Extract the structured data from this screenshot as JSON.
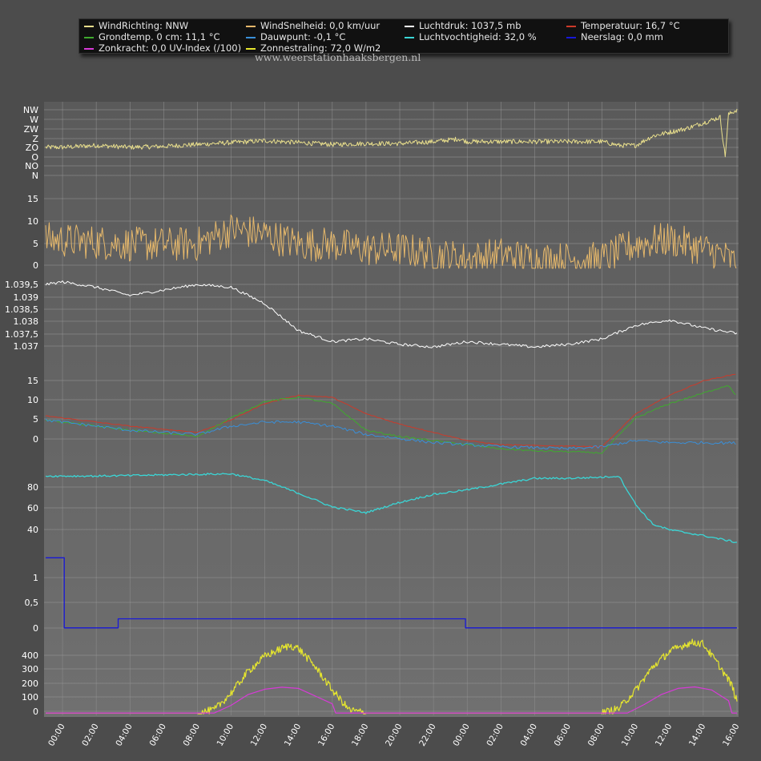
{
  "legend": [
    {
      "label": "WindRichting: NNW",
      "color": "#e8de8c"
    },
    {
      "label": "WindSnelheid: 0,0 km/uur",
      "color": "#e6b86b"
    },
    {
      "label": "Luchtdruk: 1037,5 mb",
      "color": "#ffffff"
    },
    {
      "label": "Temperatuur: 16,7 °C",
      "color": "#cc3a2a"
    },
    {
      "label": "Grondtemp. 0 cm: 11,1 °C",
      "color": "#3faa2e"
    },
    {
      "label": "Dauwpunt: -0,1 °C",
      "color": "#3a8fd8"
    },
    {
      "label": "Luchtvochtigheid: 32,0 %",
      "color": "#3ad6d6"
    },
    {
      "label": "Neerslag: 0,0 mm",
      "color": "#1818d8"
    },
    {
      "label": "Zonkracht: 0,0 UV-Index (/100)",
      "color": "#d83ad8"
    },
    {
      "label": "Zonnestraling: 72,0 W/m2",
      "color": "#e6e62e"
    }
  ],
  "site": "www.weerstationhaaksbergen.nl",
  "chart_data": {
    "type": "line",
    "x_unit": "hours since 00:00 day 1",
    "x_range": [
      -1,
      40
    ],
    "x_ticks": [
      "00:00",
      "02:00",
      "04:00",
      "06:00",
      "08:00",
      "10:00",
      "12:00",
      "14:00",
      "16:00",
      "18:00",
      "20:00",
      "22:00",
      "00:00",
      "02:00",
      "04:00",
      "06:00",
      "08:00",
      "10:00",
      "12:00",
      "14:00",
      "16:00"
    ],
    "grid": true,
    "panels": [
      {
        "id": "wind-direction",
        "ticks": [
          "NW",
          "W",
          "ZW",
          "Z",
          "ZO",
          "O",
          "NO",
          "N"
        ],
        "series": [
          {
            "name": "WindRichting",
            "color": "#e8de8c",
            "points": [
              [
                -1,
                3.0
              ],
              [
                0,
                3.0
              ],
              [
                2,
                3.2
              ],
              [
                4,
                3.0
              ],
              [
                6,
                3.1
              ],
              [
                8,
                3.3
              ],
              [
                10,
                3.5
              ],
              [
                12,
                3.7
              ],
              [
                14,
                3.5
              ],
              [
                16,
                3.3
              ],
              [
                18,
                3.4
              ],
              [
                20,
                3.4
              ],
              [
                22,
                3.6
              ],
              [
                23.5,
                3.9
              ],
              [
                24,
                3.6
              ],
              [
                28,
                3.6
              ],
              [
                32,
                3.6
              ],
              [
                33,
                3.2
              ],
              [
                34,
                3.2
              ],
              [
                35,
                4.2
              ],
              [
                36,
                4.6
              ],
              [
                37,
                5.0
              ],
              [
                38,
                5.6
              ],
              [
                39,
                6.2
              ],
              [
                39.3,
                2.0
              ],
              [
                39.5,
                6.5
              ],
              [
                40,
                7.0
              ]
            ],
            "noise": 0.25
          }
        ]
      },
      {
        "id": "wind-speed",
        "ticks": [
          "15",
          "10",
          "5",
          "0"
        ],
        "range": [
          0,
          17
        ],
        "series": [
          {
            "name": "WindSnelheid",
            "color": "#e6b86b",
            "points": [
              [
                -1,
                6
              ],
              [
                4,
                5
              ],
              [
                8,
                5
              ],
              [
                10,
                8
              ],
              [
                12,
                7
              ],
              [
                14,
                5
              ],
              [
                16,
                5
              ],
              [
                18,
                4
              ],
              [
                20,
                4
              ],
              [
                22,
                3
              ],
              [
                24,
                2
              ],
              [
                26,
                3
              ],
              [
                28,
                2
              ],
              [
                30,
                2
              ],
              [
                32,
                2
              ],
              [
                34,
                5
              ],
              [
                36,
                6
              ],
              [
                38,
                4
              ],
              [
                39,
                3
              ],
              [
                40,
                1
              ]
            ],
            "noise": 3.5
          }
        ]
      },
      {
        "id": "pressure",
        "ticks": [
          "1.039,5",
          "1.039",
          "1.038,5",
          "1.038",
          "1.037,5",
          "1.037"
        ],
        "range": [
          1036.8,
          1039.6
        ],
        "series": [
          {
            "name": "Luchtdruk",
            "color": "#ffffff",
            "points": [
              [
                -1,
                1039.3
              ],
              [
                0,
                1039.4
              ],
              [
                2,
                1039.2
              ],
              [
                4,
                1038.9
              ],
              [
                6,
                1039.1
              ],
              [
                8,
                1039.3
              ],
              [
                10,
                1039.2
              ],
              [
                12,
                1038.6
              ],
              [
                14,
                1037.6
              ],
              [
                16,
                1037.2
              ],
              [
                18,
                1037.3
              ],
              [
                20,
                1037.1
              ],
              [
                22,
                1037.0
              ],
              [
                24,
                1037.2
              ],
              [
                26,
                1037.1
              ],
              [
                28,
                1037.0
              ],
              [
                30,
                1037.1
              ],
              [
                32,
                1037.3
              ],
              [
                34,
                1037.8
              ],
              [
                36,
                1038.0
              ],
              [
                38,
                1037.7
              ],
              [
                40,
                1037.5
              ]
            ],
            "noise": 0.05
          }
        ]
      },
      {
        "id": "temperature",
        "ticks": [
          "15",
          "10",
          "5",
          "0"
        ],
        "range": [
          -3,
          18
        ],
        "series": [
          {
            "name": "Temperatuur",
            "color": "#cc3a2a",
            "points": [
              [
                -1,
                6.5
              ],
              [
                4,
                4.0
              ],
              [
                8,
                2.5
              ],
              [
                10,
                5.5
              ],
              [
                12,
                9.5
              ],
              [
                14,
                11.5
              ],
              [
                16,
                11.0
              ],
              [
                18,
                7.0
              ],
              [
                20,
                4.5
              ],
              [
                22,
                2.5
              ],
              [
                24,
                0.5
              ],
              [
                26,
                -0.5
              ],
              [
                28,
                -0.7
              ],
              [
                30,
                -0.8
              ],
              [
                32,
                -1.0
              ],
              [
                34,
                7.0
              ],
              [
                36,
                11.5
              ],
              [
                38,
                15.0
              ],
              [
                40,
                16.7
              ]
            ],
            "noise": 0.1
          },
          {
            "name": "Grondtemp. 0 cm",
            "color": "#3faa2e",
            "points": [
              [
                -1,
                5.5
              ],
              [
                4,
                3.0
              ],
              [
                8,
                1.5
              ],
              [
                10,
                6.0
              ],
              [
                12,
                10.0
              ],
              [
                14,
                11.0
              ],
              [
                16,
                9.5
              ],
              [
                18,
                3.0
              ],
              [
                20,
                1.5
              ],
              [
                22,
                0.5
              ],
              [
                24,
                -0.5
              ],
              [
                26,
                -1.5
              ],
              [
                28,
                -2.0
              ],
              [
                30,
                -2.2
              ],
              [
                32,
                -2.5
              ],
              [
                34,
                6.0
              ],
              [
                36,
                9.5
              ],
              [
                38,
                12.0
              ],
              [
                39.5,
                14.0
              ],
              [
                40,
                11.1
              ]
            ],
            "noise": 0.2
          },
          {
            "name": "Dauwpunt",
            "color": "#3a8fd8",
            "points": [
              [
                -1,
                5.5
              ],
              [
                4,
                3.0
              ],
              [
                8,
                2.0
              ],
              [
                10,
                4.0
              ],
              [
                12,
                5.0
              ],
              [
                14,
                5.0
              ],
              [
                16,
                4.0
              ],
              [
                18,
                2.0
              ],
              [
                20,
                1.0
              ],
              [
                22,
                0.0
              ],
              [
                24,
                -0.5
              ],
              [
                26,
                -1.0
              ],
              [
                28,
                -1.2
              ],
              [
                30,
                -1.5
              ],
              [
                32,
                -1.0
              ],
              [
                34,
                0.5
              ],
              [
                36,
                0.0
              ],
              [
                38,
                0.0
              ],
              [
                40,
                -0.1
              ]
            ],
            "noise": 0.35
          }
        ]
      },
      {
        "id": "humidity",
        "ticks": [
          "80",
          "60",
          "40"
        ],
        "range": [
          30,
          100
        ],
        "series": [
          {
            "name": "Luchtvochtigheid",
            "color": "#3ad6d6",
            "points": [
              [
                -1,
                90
              ],
              [
                2,
                90
              ],
              [
                6,
                91
              ],
              [
                10,
                92
              ],
              [
                12,
                86
              ],
              [
                14,
                75
              ],
              [
                16,
                63
              ],
              [
                18,
                58
              ],
              [
                20,
                67
              ],
              [
                22,
                74
              ],
              [
                24,
                78
              ],
              [
                26,
                83
              ],
              [
                28,
                88
              ],
              [
                30,
                88
              ],
              [
                32,
                89
              ],
              [
                33,
                90
              ],
              [
                34,
                65
              ],
              [
                35,
                48
              ],
              [
                36,
                43
              ],
              [
                38,
                38
              ],
              [
                40,
                32
              ]
            ],
            "noise": 0.8
          }
        ]
      },
      {
        "id": "precipitation",
        "ticks": [
          "1",
          "0,5",
          "0"
        ],
        "range": [
          -0.1,
          1.5
        ],
        "series": [
          {
            "name": "Neerslag",
            "color": "#1818d8",
            "points": [
              [
                -1,
                1.4
              ],
              [
                0.1,
                1.4
              ],
              [
                0.1,
                0.0
              ],
              [
                3.3,
                0.0
              ],
              [
                3.3,
                0.18
              ],
              [
                23.9,
                0.18
              ],
              [
                23.9,
                0.0
              ],
              [
                40,
                0.0
              ]
            ],
            "noise": 0
          }
        ]
      },
      {
        "id": "solar",
        "ticks": [
          "400",
          "300",
          "200",
          "100",
          "0"
        ],
        "range": [
          -10,
          470
        ],
        "series": [
          {
            "name": "Zonnestraling",
            "color": "#e6e62e",
            "points": [
              [
                -1,
                0
              ],
              [
                8,
                0
              ],
              [
                9,
                20
              ],
              [
                10,
                130
              ],
              [
                11,
                270
              ],
              [
                12,
                370
              ],
              [
                13,
                420
              ],
              [
                13.5,
                440
              ],
              [
                14,
                420
              ],
              [
                15,
                300
              ],
              [
                16,
                150
              ],
              [
                17,
                20
              ],
              [
                18,
                0
              ],
              [
                32,
                0
              ],
              [
                33,
                30
              ],
              [
                34,
                150
              ],
              [
                35,
                300
              ],
              [
                36,
                400
              ],
              [
                37,
                450
              ],
              [
                37.5,
                460
              ],
              [
                38,
                450
              ],
              [
                39,
                300
              ],
              [
                39.7,
                180
              ],
              [
                40,
                72
              ]
            ],
            "noise": 25
          },
          {
            "name": "Zonkracht",
            "color": "#d83ad8",
            "points": [
              [
                -1,
                0
              ],
              [
                9,
                0
              ],
              [
                10,
                50
              ],
              [
                11,
                120
              ],
              [
                12,
                155
              ],
              [
                13,
                168
              ],
              [
                14,
                160
              ],
              [
                15,
                110
              ],
              [
                16,
                60
              ],
              [
                16.2,
                0
              ],
              [
                33.5,
                0
              ],
              [
                34.5,
                55
              ],
              [
                35.5,
                120
              ],
              [
                36.5,
                160
              ],
              [
                37.5,
                170
              ],
              [
                38.5,
                150
              ],
              [
                39.5,
                80
              ],
              [
                39.7,
                0
              ],
              [
                40,
                0
              ]
            ],
            "noise": 0
          }
        ]
      }
    ]
  }
}
